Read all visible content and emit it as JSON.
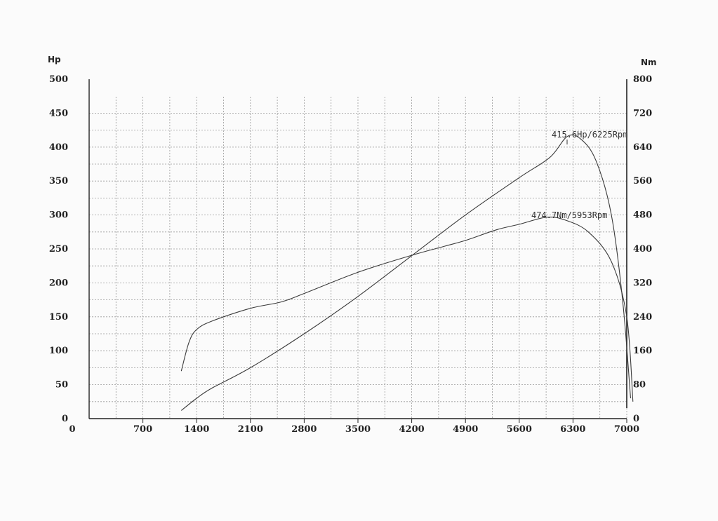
{
  "chart_data": {
    "type": "line",
    "left_axis_label": "Hp",
    "right_axis_label": "Nm",
    "x_ticks": [
      0,
      700,
      1400,
      2100,
      2800,
      3500,
      4200,
      4900,
      5600,
      6300,
      7000
    ],
    "y_left_ticks": [
      0,
      50,
      100,
      150,
      200,
      250,
      300,
      350,
      400,
      450,
      500
    ],
    "y_right_ticks": [
      0,
      80,
      160,
      240,
      320,
      400,
      480,
      560,
      640,
      720,
      800
    ],
    "xlim": [
      0,
      7000
    ],
    "ylim_left": [
      0,
      500
    ],
    "ylim_right": [
      0,
      800
    ],
    "grid": true,
    "series": [
      {
        "axis": "left",
        "x": [
          1200,
          1400,
          1600,
          2100,
          2800,
          3500,
          4200,
          4900,
          5600,
          6000,
          6225,
          6400,
          6600,
          6800,
          6950,
          7050
        ],
        "values": [
          12,
          30,
          45,
          75,
          125,
          180,
          240,
          300,
          355,
          385,
          415.6,
          412,
          380,
          300,
          170,
          30
        ]
      },
      {
        "axis": "right",
        "x": [
          1200,
          1300,
          1400,
          1600,
          2100,
          2500,
          2800,
          3500,
          4200,
          4600,
          4900,
          5300,
          5600,
          5953,
          6200,
          6500,
          6800,
          7000,
          7080
        ],
        "values": [
          112,
          180,
          210,
          230,
          260,
          275,
          295,
          345,
          385,
          405,
          420,
          445,
          458,
          474.7,
          468,
          440,
          370,
          240,
          40
        ]
      }
    ],
    "annotations": [
      {
        "text": "415.6Hp/6225Rpm"
      },
      {
        "text": "474.7Nm/5953Rpm"
      }
    ]
  }
}
